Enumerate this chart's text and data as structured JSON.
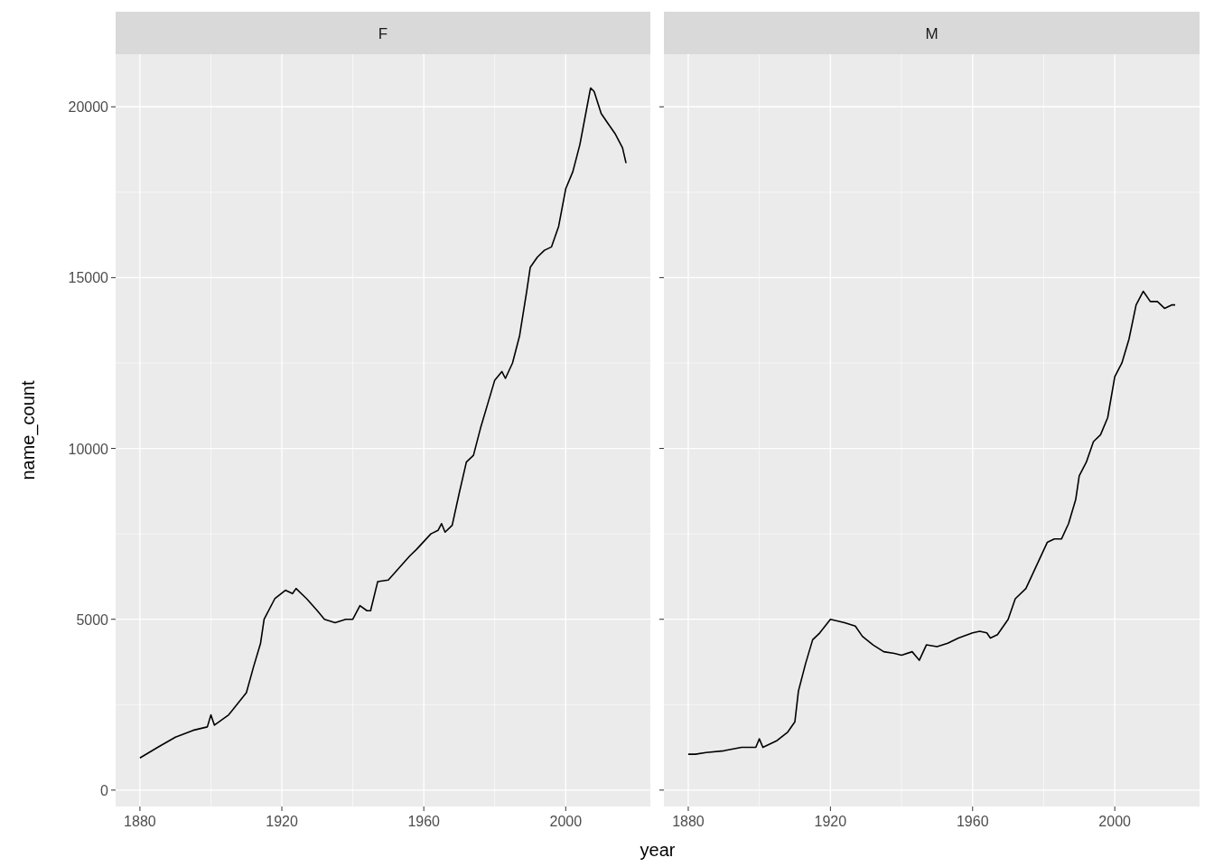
{
  "chart_data": [
    {
      "type": "line",
      "title": "F",
      "xlabel": "year",
      "ylabel": "name_count",
      "xlim": [
        1873.15,
        2023.85
      ],
      "ylim": [
        -480,
        21540
      ],
      "xticks": [
        1880,
        1920,
        1960,
        2000
      ],
      "yticks": [
        0,
        5000,
        10000,
        15000,
        20000
      ],
      "grid": true,
      "series": [
        {
          "color": "#000000",
          "x": [
            1880,
            1885,
            1890,
            1895,
            1899,
            1900,
            1901,
            1905,
            1910,
            1912,
            1914,
            1915,
            1918,
            1921,
            1923,
            1924,
            1927,
            1930,
            1932,
            1935,
            1938,
            1940,
            1942,
            1944,
            1945,
            1947,
            1950,
            1953,
            1956,
            1958,
            1962,
            1964,
            1965,
            1966,
            1968,
            1970,
            1972,
            1974,
            1976,
            1978,
            1980,
            1982,
            1983,
            1985,
            1987,
            1989,
            1990,
            1992,
            1994,
            1996,
            1998,
            2000,
            2002,
            2004,
            2006,
            2007,
            2008,
            2010,
            2012,
            2014,
            2016,
            2017
          ],
          "values": [
            940,
            1250,
            1550,
            1750,
            1850,
            2200,
            1900,
            2200,
            2850,
            3600,
            4300,
            5000,
            5600,
            5850,
            5750,
            5900,
            5600,
            5250,
            5000,
            4900,
            5000,
            5000,
            5400,
            5250,
            5250,
            6100,
            6150,
            6500,
            6850,
            7050,
            7500,
            7600,
            7800,
            7550,
            7750,
            8700,
            9600,
            9800,
            10600,
            11300,
            12000,
            12250,
            12050,
            12500,
            13300,
            14600,
            15300,
            15600,
            15800,
            15900,
            16500,
            17600,
            18100,
            18900,
            20000,
            20550,
            20450,
            19800,
            19500,
            19200,
            18800,
            18350
          ]
        }
      ]
    },
    {
      "type": "line",
      "title": "M",
      "xlim": [
        1873.15,
        2023.85
      ],
      "ylim": [
        -480,
        21540
      ],
      "xticks": [
        1880,
        1920,
        1960,
        2000
      ],
      "yticks": [
        0,
        5000,
        10000,
        15000,
        20000
      ],
      "grid": true,
      "tick_labels": "x",
      "series": [
        {
          "color": "#000000",
          "x": [
            1880,
            1882,
            1885,
            1890,
            1895,
            1899,
            1900,
            1901,
            1905,
            1908,
            1910,
            1911,
            1913,
            1915,
            1917,
            1920,
            1924,
            1927,
            1929,
            1932,
            1935,
            1938,
            1940,
            1943,
            1945,
            1947,
            1950,
            1953,
            1956,
            1960,
            1962,
            1964,
            1965,
            1967,
            1970,
            1972,
            1975,
            1977,
            1979,
            1981,
            1983,
            1985,
            1987,
            1989,
            1990,
            1992,
            1994,
            1996,
            1998,
            2000,
            2002,
            2004,
            2006,
            2008,
            2010,
            2012,
            2014,
            2016,
            2017
          ],
          "values": [
            1050,
            1050,
            1100,
            1150,
            1250,
            1250,
            1500,
            1250,
            1450,
            1700,
            2000,
            2900,
            3700,
            4400,
            4600,
            5000,
            4900,
            4800,
            4500,
            4250,
            4050,
            4000,
            3950,
            4050,
            3800,
            4250,
            4200,
            4300,
            4450,
            4600,
            4650,
            4600,
            4450,
            4550,
            5000,
            5600,
            5900,
            6350,
            6800,
            7250,
            7350,
            7350,
            7800,
            8500,
            9200,
            9600,
            10200,
            10400,
            10900,
            12100,
            12500,
            13200,
            14200,
            14600,
            14300,
            14300,
            14100,
            14200,
            14200
          ]
        }
      ]
    }
  ]
}
